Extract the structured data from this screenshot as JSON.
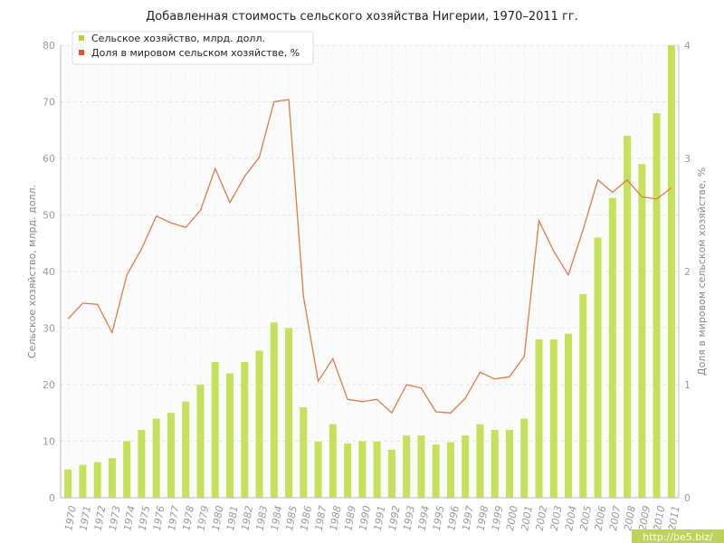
{
  "chart_data": {
    "type": "bar",
    "title": "Добавленная стоимость сельского хозяйства Нигерии, 1970–2011 гг.",
    "ylabel": "Сельское хозяйство, млрд. долл.",
    "ylabel_right": "Доля в мировом сельском хозяйстве, %",
    "ylim": [
      0,
      80
    ],
    "ylim_right": [
      0,
      4
    ],
    "yticks": [
      0,
      10,
      20,
      30,
      40,
      50,
      60,
      70,
      80
    ],
    "yticks_right": [
      0,
      1,
      2,
      3,
      4
    ],
    "grid": true,
    "legend_position": "top-left",
    "categories": [
      "1970",
      "1971",
      "1972",
      "1973",
      "1974",
      "1975",
      "1976",
      "1977",
      "1978",
      "1979",
      "1980",
      "1981",
      "1982",
      "1983",
      "1984",
      "1985",
      "1986",
      "1987",
      "1988",
      "1989",
      "1990",
      "1991",
      "1992",
      "1993",
      "1994",
      "1995",
      "1996",
      "1997",
      "1998",
      "1999",
      "2000",
      "2001",
      "2002",
      "2003",
      "2004",
      "2005",
      "2006",
      "2007",
      "2008",
      "2009",
      "2010",
      "2011"
    ],
    "series": [
      {
        "name": "Сельское хозяйство, млрд. долл.",
        "type": "bar",
        "axis": "left",
        "color": "#c5e05a",
        "values": [
          5,
          5.8,
          6.3,
          7,
          10,
          12,
          14,
          15,
          17,
          20,
          24,
          22,
          24,
          26,
          31,
          30,
          16,
          9.9,
          13,
          9.6,
          10,
          9.9,
          8.5,
          11,
          11,
          9.4,
          9.8,
          11,
          13,
          12,
          12,
          14,
          28,
          28,
          29,
          36,
          46,
          53,
          64,
          59,
          68,
          80
        ]
      },
      {
        "name": "Доля в мировом сельском хозяйстве, %",
        "type": "line",
        "axis": "right",
        "color": "#e07a4a",
        "values": [
          1.58,
          1.72,
          1.71,
          1.46,
          1.97,
          2.2,
          2.49,
          2.43,
          2.39,
          2.54,
          2.91,
          2.61,
          2.84,
          3.01,
          3.5,
          3.52,
          1.78,
          1.03,
          1.23,
          0.87,
          0.85,
          0.87,
          0.75,
          1.0,
          0.97,
          0.76,
          0.75,
          0.88,
          1.11,
          1.05,
          1.07,
          1.25,
          2.45,
          2.18,
          1.97,
          2.37,
          2.81,
          2.7,
          2.81,
          2.66,
          2.64,
          2.74
        ]
      }
    ]
  },
  "watermark": "http://be5.biz/",
  "colors": {
    "grid": "#e6e6e6",
    "axis": "#bbbbbb",
    "watermark_bg": "#bdd25a"
  }
}
